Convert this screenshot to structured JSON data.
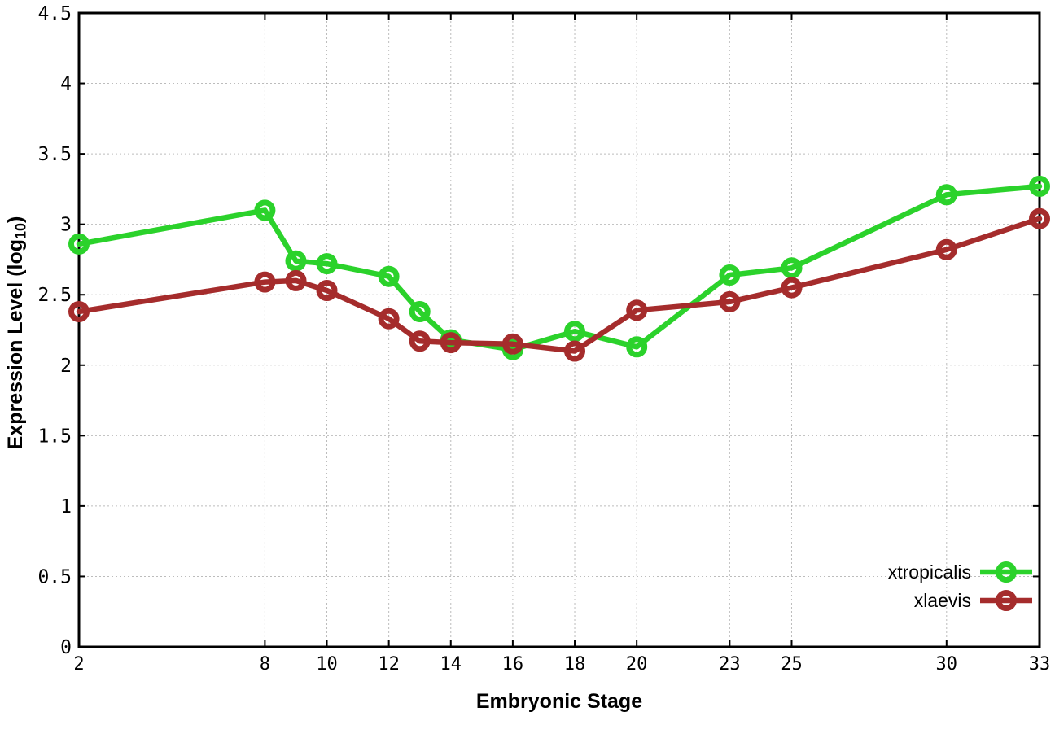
{
  "chart_data": {
    "type": "line",
    "title": "",
    "xlabel": "Embryonic Stage",
    "ylabel": "Expression Level (log10)",
    "ylabel_prefix": "Expression Level (log",
    "ylabel_sub": "10",
    "ylabel_suffix": ")",
    "x": [
      2,
      8,
      9,
      10,
      12,
      13,
      14,
      16,
      18,
      20,
      23,
      25,
      30,
      33
    ],
    "series": [
      {
        "name": "xtropicalis",
        "color": "#2bd22b",
        "marker": "open-circle",
        "values": [
          2.86,
          3.1,
          2.74,
          2.72,
          2.63,
          2.38,
          2.18,
          2.11,
          2.24,
          2.13,
          2.64,
          2.69,
          3.21,
          3.27
        ]
      },
      {
        "name": "xlaevis",
        "color": "#a52c2c",
        "marker": "open-circle",
        "values": [
          2.38,
          2.59,
          2.6,
          2.53,
          2.33,
          2.17,
          2.16,
          2.15,
          2.1,
          2.39,
          2.45,
          2.55,
          2.82,
          3.04
        ]
      }
    ],
    "xlim": [
      2,
      33
    ],
    "ylim": [
      0,
      4.5
    ],
    "xticks": [
      2,
      8,
      10,
      12,
      14,
      16,
      18,
      20,
      23,
      25,
      30,
      33
    ],
    "yticks": [
      0,
      0.5,
      1,
      1.5,
      2,
      2.5,
      3,
      3.5,
      4,
      4.5
    ],
    "ytick_labels": [
      "0",
      "0.5",
      "1",
      "1.5",
      "2",
      "2.5",
      "3",
      "3.5",
      "4",
      "4.5"
    ],
    "grid": true,
    "legend_position": "bottom-right",
    "background_color": "#ffffff",
    "grid_color": "#bcbcbc",
    "axis_color": "#000000"
  }
}
